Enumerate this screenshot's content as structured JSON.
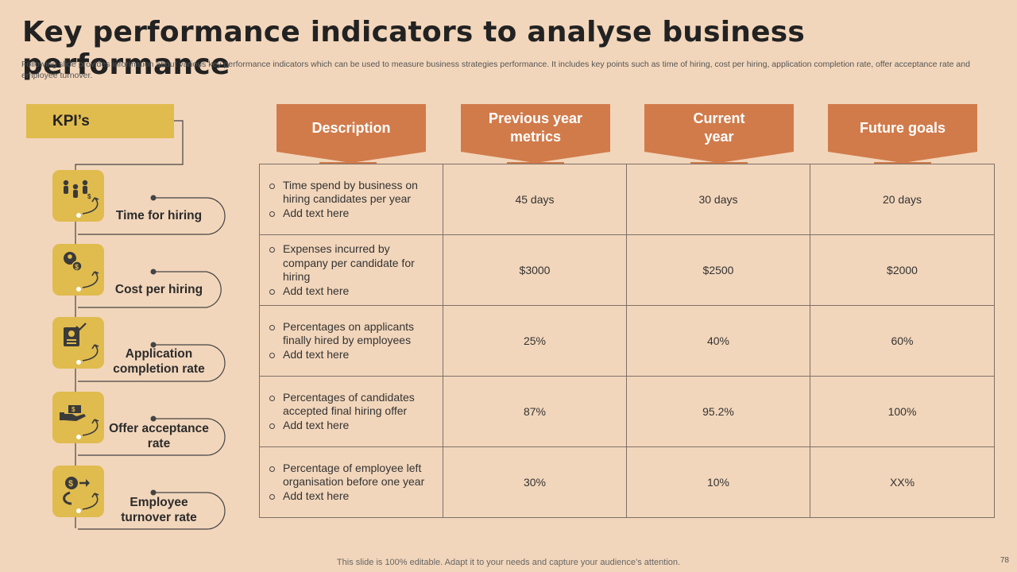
{
  "title": "Key performance indicators to analyse business performance",
  "subtitle": "Following slide provides information about various key performance indicators which can be used to measure business strategies performance. It includes key points such as time of hiring, cost per hiring, application completion rate, offer acceptance rate and employee turnover.",
  "kpi_header": "KPI’s",
  "columns": [
    "Description",
    "Previous year metrics",
    "Current year",
    "Future goals"
  ],
  "rows": [
    {
      "kpi": "Time for hiring",
      "icon": "people-hiring-icon",
      "desc": [
        "Time spend by business on hiring candidates per year",
        "Add text here"
      ],
      "previous": "45 days",
      "current": "30 days",
      "future": "20 days"
    },
    {
      "kpi": "Cost per hiring",
      "icon": "person-dollar-icon",
      "desc": [
        "Expenses incurred by company per candidate for hiring",
        "Add text here"
      ],
      "previous": "$3000",
      "current": "$2500",
      "future": "$2000"
    },
    {
      "kpi": "Application completion rate",
      "icon": "application-document-icon",
      "desc": [
        "Percentages on applicants finally hired by employees",
        "Add text here"
      ],
      "previous": "25%",
      "current": "40%",
      "future": "60%"
    },
    {
      "kpi": "Offer acceptance rate",
      "icon": "hand-offer-icon",
      "desc": [
        "Percentages of candidates accepted final hiring offer",
        "Add text here"
      ],
      "previous": "87%",
      "current": "95.2%",
      "future": "100%"
    },
    {
      "kpi": "Employee turnover rate",
      "icon": "dollar-turnover-icon",
      "desc": [
        "Percentage of employee left organisation before one year",
        "Add text here"
      ],
      "previous": "30%",
      "current": "10%",
      "future": "XX%"
    }
  ],
  "footer": "This slide is 100% editable. Adapt it to your needs and capture your audience’s attention.",
  "page_number": "78",
  "colors": {
    "background": "#f2d6bb",
    "kpi_gold": "#e0bb4e",
    "header_orange": "#d17b4b",
    "grid": "#7d7068"
  }
}
